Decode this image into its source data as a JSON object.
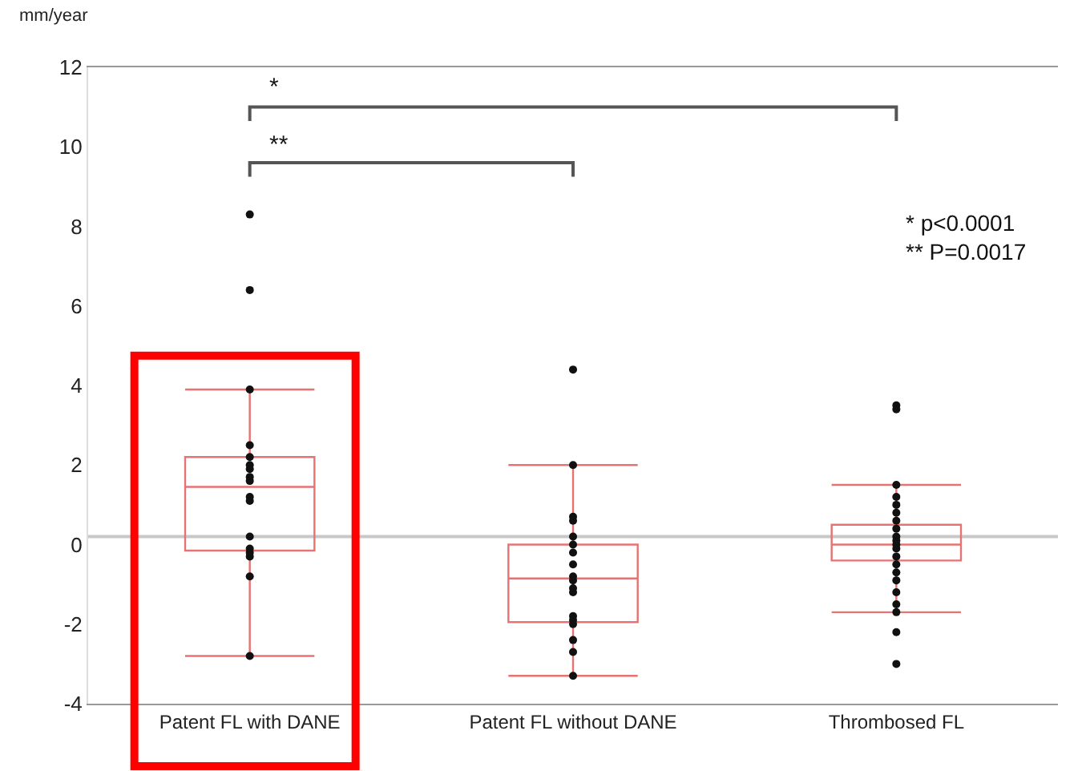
{
  "chart_data": {
    "type": "box",
    "ylabel": "mm/year",
    "categories": [
      "Patent FL with DANE",
      "Patent FL without DANE",
      "Thrombosed FL"
    ],
    "ylim": [
      -4,
      12
    ],
    "yticks": [
      -4,
      -2,
      0,
      2,
      4,
      6,
      8,
      10,
      12
    ],
    "series": [
      {
        "color": "#e57373",
        "boxes": [
          {
            "low": -2.8,
            "q1": -0.15,
            "median": 1.45,
            "q3": 2.2,
            "high": 3.9,
            "outliers": [
              6.4,
              8.3
            ]
          },
          {
            "low": -3.3,
            "q1": -1.95,
            "median": -0.85,
            "q3": 0.0,
            "high": 2.0,
            "outliers": [
              4.4
            ]
          },
          {
            "low": -1.7,
            "q1": -0.4,
            "median": 0.0,
            "q3": 0.5,
            "high": 1.5,
            "outliers": [
              3.5,
              3.4,
              -2.2,
              -3.0
            ]
          }
        ]
      },
      {
        "type": "scatter",
        "color": "#111111",
        "marker": "circle",
        "x": [
          "Patent FL with DANE",
          "Patent FL with DANE",
          "Patent FL with DANE",
          "Patent FL with DANE",
          "Patent FL with DANE",
          "Patent FL with DANE",
          "Patent FL with DANE",
          "Patent FL with DANE",
          "Patent FL with DANE",
          "Patent FL with DANE",
          "Patent FL with DANE",
          "Patent FL with DANE",
          "Patent FL with DANE",
          "Patent FL with DANE",
          "Patent FL with DANE",
          "Patent FL without DANE",
          "Patent FL without DANE",
          "Patent FL without DANE",
          "Patent FL without DANE",
          "Patent FL without DANE",
          "Patent FL without DANE",
          "Patent FL without DANE",
          "Patent FL without DANE",
          "Patent FL without DANE",
          "Patent FL without DANE",
          "Patent FL without DANE",
          "Patent FL without DANE",
          "Patent FL without DANE",
          "Patent FL without DANE",
          "Patent FL without DANE",
          "Patent FL without DANE",
          "Patent FL without DANE",
          "Thrombosed FL",
          "Thrombosed FL",
          "Thrombosed FL",
          "Thrombosed FL",
          "Thrombosed FL",
          "Thrombosed FL",
          "Thrombosed FL",
          "Thrombosed FL",
          "Thrombosed FL",
          "Thrombosed FL",
          "Thrombosed FL",
          "Thrombosed FL",
          "Thrombosed FL",
          "Thrombosed FL",
          "Thrombosed FL",
          "Thrombosed FL",
          "Thrombosed FL"
        ],
        "values": [
          3.9,
          2.5,
          2.2,
          2.0,
          1.9,
          1.7,
          1.6,
          1.2,
          1.1,
          0.2,
          -0.1,
          -0.2,
          -0.3,
          -0.8,
          -2.8,
          2.0,
          0.7,
          0.6,
          0.2,
          0.0,
          -0.2,
          -0.5,
          -0.8,
          -0.9,
          -1.1,
          -1.2,
          -1.8,
          -1.9,
          -2.0,
          -2.4,
          -2.7,
          -3.3,
          1.5,
          1.2,
          1.0,
          0.8,
          0.6,
          0.4,
          0.2,
          0.1,
          0.0,
          -0.1,
          -0.3,
          -0.5,
          -0.7,
          -0.9,
          -1.2,
          -1.5,
          -1.7
        ]
      }
    ],
    "ref_lines": [
      {
        "axis": "y",
        "value": 0.2,
        "color": "#c8c8c8"
      }
    ],
    "annotations": [
      "*",
      "**",
      "* p<0.0001\n** P=0.0017"
    ]
  }
}
